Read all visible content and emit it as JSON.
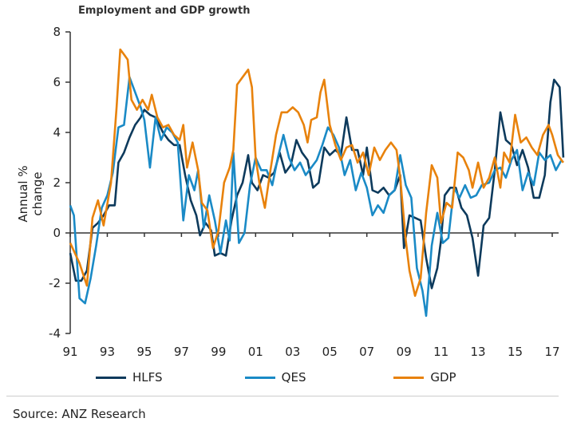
{
  "chart_data": {
    "type": "line",
    "title": "Employment and GDP growth",
    "ylabel": "Annual % change",
    "xlabel": "",
    "ylim": [
      -4,
      8
    ],
    "xlim": [
      1991,
      2017.6
    ],
    "yticks": [
      "-4",
      "-2",
      "0",
      "2",
      "4",
      "6",
      "8"
    ],
    "xticks": [
      "91",
      "93",
      "95",
      "97",
      "99",
      "01",
      "03",
      "05",
      "07",
      "09",
      "11",
      "13",
      "15",
      "17"
    ],
    "legend_position": "bottom",
    "series": [
      {
        "name": "HLFS",
        "color": "#0d3a5c",
        "points": [
          [
            1991.0,
            -0.8
          ],
          [
            1991.3,
            -1.9
          ],
          [
            1991.6,
            -1.9
          ],
          [
            1991.9,
            -1.5
          ],
          [
            1992.2,
            0.2
          ],
          [
            1992.5,
            0.4
          ],
          [
            1992.8,
            0.7
          ],
          [
            1993.1,
            1.1
          ],
          [
            1993.4,
            1.1
          ],
          [
            1993.6,
            2.8
          ],
          [
            1993.9,
            3.2
          ],
          [
            1994.2,
            3.8
          ],
          [
            1994.5,
            4.3
          ],
          [
            1994.8,
            4.6
          ],
          [
            1995.0,
            4.9
          ],
          [
            1995.3,
            4.7
          ],
          [
            1995.6,
            4.6
          ],
          [
            1996.0,
            4.0
          ],
          [
            1996.3,
            3.7
          ],
          [
            1996.6,
            3.5
          ],
          [
            1996.9,
            3.5
          ],
          [
            1997.2,
            2.3
          ],
          [
            1997.5,
            1.3
          ],
          [
            1997.8,
            0.7
          ],
          [
            1998.0,
            -0.1
          ],
          [
            1998.3,
            0.4
          ],
          [
            1998.6,
            0.1
          ],
          [
            1998.8,
            -0.9
          ],
          [
            1999.1,
            -0.8
          ],
          [
            1999.4,
            -0.9
          ],
          [
            1999.7,
            0.5
          ],
          [
            2000.0,
            1.5
          ],
          [
            2000.3,
            2.0
          ],
          [
            2000.6,
            3.1
          ],
          [
            2000.8,
            2.0
          ],
          [
            2001.1,
            1.7
          ],
          [
            2001.4,
            2.3
          ],
          [
            2001.7,
            2.2
          ],
          [
            2002.0,
            2.4
          ],
          [
            2002.3,
            3.2
          ],
          [
            2002.6,
            2.4
          ],
          [
            2002.9,
            2.7
          ],
          [
            2003.2,
            3.7
          ],
          [
            2003.5,
            3.2
          ],
          [
            2003.8,
            2.9
          ],
          [
            2004.1,
            1.8
          ],
          [
            2004.4,
            2.0
          ],
          [
            2004.7,
            3.4
          ],
          [
            2005.0,
            3.1
          ],
          [
            2005.3,
            3.3
          ],
          [
            2005.6,
            3.1
          ],
          [
            2005.9,
            4.6
          ],
          [
            2006.2,
            3.3
          ],
          [
            2006.5,
            3.3
          ],
          [
            2006.8,
            2.3
          ],
          [
            2007.0,
            3.4
          ],
          [
            2007.3,
            1.7
          ],
          [
            2007.6,
            1.6
          ],
          [
            2007.9,
            1.8
          ],
          [
            2008.2,
            1.5
          ],
          [
            2008.5,
            1.7
          ],
          [
            2008.8,
            2.3
          ],
          [
            2009.0,
            -0.6
          ],
          [
            2009.3,
            0.7
          ],
          [
            2009.6,
            0.6
          ],
          [
            2009.9,
            0.5
          ],
          [
            2010.2,
            -1.0
          ],
          [
            2010.5,
            -2.2
          ],
          [
            2010.8,
            -1.4
          ],
          [
            2011.0,
            -0.3
          ],
          [
            2011.2,
            1.5
          ],
          [
            2011.5,
            1.8
          ],
          [
            2011.8,
            1.8
          ],
          [
            2012.1,
            1.0
          ],
          [
            2012.4,
            0.7
          ],
          [
            2012.7,
            -0.2
          ],
          [
            2013.0,
            -1.7
          ],
          [
            2013.3,
            0.3
          ],
          [
            2013.6,
            0.6
          ],
          [
            2013.9,
            2.5
          ],
          [
            2014.2,
            4.8
          ],
          [
            2014.5,
            3.7
          ],
          [
            2014.8,
            3.5
          ],
          [
            2015.1,
            2.7
          ],
          [
            2015.4,
            3.3
          ],
          [
            2015.7,
            2.6
          ],
          [
            2016.0,
            1.4
          ],
          [
            2016.3,
            1.4
          ],
          [
            2016.6,
            2.3
          ],
          [
            2016.9,
            5.2
          ],
          [
            2017.1,
            6.1
          ],
          [
            2017.4,
            5.8
          ],
          [
            2017.6,
            3.0
          ]
        ]
      },
      {
        "name": "QES",
        "color": "#1a8ac6",
        "points": [
          [
            1991.0,
            1.1
          ],
          [
            1991.2,
            0.7
          ],
          [
            1991.5,
            -2.6
          ],
          [
            1991.8,
            -2.8
          ],
          [
            1992.1,
            -1.8
          ],
          [
            1992.4,
            -0.5
          ],
          [
            1992.7,
            1.0
          ],
          [
            1993.0,
            1.5
          ],
          [
            1993.3,
            2.4
          ],
          [
            1993.6,
            4.2
          ],
          [
            1993.9,
            4.3
          ],
          [
            1994.2,
            6.2
          ],
          [
            1994.5,
            5.6
          ],
          [
            1994.8,
            5.0
          ],
          [
            1995.0,
            4.5
          ],
          [
            1995.3,
            2.6
          ],
          [
            1995.6,
            4.6
          ],
          [
            1995.9,
            3.7
          ],
          [
            1996.2,
            4.2
          ],
          [
            1996.5,
            4.0
          ],
          [
            1996.8,
            3.6
          ],
          [
            1997.1,
            0.5
          ],
          [
            1997.4,
            2.3
          ],
          [
            1997.7,
            1.7
          ],
          [
            1997.9,
            2.5
          ],
          [
            1998.2,
            0.2
          ],
          [
            1998.5,
            1.5
          ],
          [
            1998.8,
            0.5
          ],
          [
            1999.1,
            -0.8
          ],
          [
            1999.4,
            0.5
          ],
          [
            1999.6,
            -0.3
          ],
          [
            1999.8,
            3.2
          ],
          [
            2000.1,
            -0.4
          ],
          [
            2000.4,
            0.0
          ],
          [
            2000.7,
            1.9
          ],
          [
            2001.0,
            3.0
          ],
          [
            2001.3,
            2.5
          ],
          [
            2001.6,
            2.5
          ],
          [
            2001.9,
            1.9
          ],
          [
            2002.2,
            3.0
          ],
          [
            2002.5,
            3.9
          ],
          [
            2002.8,
            3.0
          ],
          [
            2003.1,
            2.5
          ],
          [
            2003.4,
            2.8
          ],
          [
            2003.7,
            2.3
          ],
          [
            2004.0,
            2.6
          ],
          [
            2004.3,
            2.9
          ],
          [
            2004.6,
            3.5
          ],
          [
            2004.9,
            4.2
          ],
          [
            2005.2,
            3.9
          ],
          [
            2005.5,
            3.4
          ],
          [
            2005.8,
            2.3
          ],
          [
            2006.1,
            2.9
          ],
          [
            2006.4,
            1.7
          ],
          [
            2006.7,
            2.4
          ],
          [
            2007.0,
            1.8
          ],
          [
            2007.3,
            0.7
          ],
          [
            2007.6,
            1.1
          ],
          [
            2007.9,
            0.8
          ],
          [
            2008.2,
            1.5
          ],
          [
            2008.5,
            1.7
          ],
          [
            2008.8,
            3.1
          ],
          [
            2009.1,
            1.9
          ],
          [
            2009.4,
            1.4
          ],
          [
            2009.7,
            -1.4
          ],
          [
            2010.0,
            -2.3
          ],
          [
            2010.2,
            -3.3
          ],
          [
            2010.5,
            -0.5
          ],
          [
            2010.8,
            0.8
          ],
          [
            2011.1,
            -0.4
          ],
          [
            2011.4,
            -0.2
          ],
          [
            2011.7,
            1.8
          ],
          [
            2012.0,
            1.4
          ],
          [
            2012.3,
            1.9
          ],
          [
            2012.6,
            1.4
          ],
          [
            2012.9,
            1.5
          ],
          [
            2013.2,
            1.9
          ],
          [
            2013.6,
            2.0
          ],
          [
            2013.9,
            2.5
          ],
          [
            2014.2,
            2.6
          ],
          [
            2014.5,
            2.2
          ],
          [
            2014.8,
            2.9
          ],
          [
            2015.1,
            3.3
          ],
          [
            2015.4,
            1.7
          ],
          [
            2015.7,
            2.4
          ],
          [
            2016.0,
            1.9
          ],
          [
            2016.3,
            3.2
          ],
          [
            2016.6,
            2.9
          ],
          [
            2016.9,
            3.1
          ],
          [
            2017.2,
            2.5
          ],
          [
            2017.5,
            2.9
          ]
        ]
      },
      {
        "name": "GDP",
        "color": "#e8820c",
        "points": [
          [
            1991.0,
            -0.4
          ],
          [
            1991.5,
            -1.2
          ],
          [
            1991.9,
            -2.1
          ],
          [
            1992.2,
            0.6
          ],
          [
            1992.5,
            1.3
          ],
          [
            1992.8,
            0.3
          ],
          [
            1993.2,
            2.0
          ],
          [
            1993.5,
            5.0
          ],
          [
            1993.7,
            7.3
          ],
          [
            1993.9,
            7.1
          ],
          [
            1994.1,
            6.9
          ],
          [
            1994.3,
            5.3
          ],
          [
            1994.6,
            4.9
          ],
          [
            1994.9,
            5.3
          ],
          [
            1995.2,
            4.9
          ],
          [
            1995.4,
            5.5
          ],
          [
            1995.7,
            4.6
          ],
          [
            1996.0,
            4.2
          ],
          [
            1996.3,
            4.3
          ],
          [
            1996.6,
            3.9
          ],
          [
            1996.9,
            3.7
          ],
          [
            1997.1,
            4.3
          ],
          [
            1997.3,
            2.6
          ],
          [
            1997.6,
            3.6
          ],
          [
            1997.9,
            2.5
          ],
          [
            1998.1,
            1.2
          ],
          [
            1998.4,
            0.9
          ],
          [
            1998.7,
            -0.6
          ],
          [
            1999.0,
            0.1
          ],
          [
            1999.3,
            2.0
          ],
          [
            1999.6,
            2.6
          ],
          [
            1999.8,
            3.3
          ],
          [
            2000.0,
            5.9
          ],
          [
            2000.3,
            6.2
          ],
          [
            2000.6,
            6.5
          ],
          [
            2000.8,
            5.8
          ],
          [
            2001.0,
            3.0
          ],
          [
            2001.2,
            2.0
          ],
          [
            2001.5,
            1.0
          ],
          [
            2001.8,
            2.5
          ],
          [
            2002.1,
            3.9
          ],
          [
            2002.4,
            4.8
          ],
          [
            2002.7,
            4.8
          ],
          [
            2003.0,
            5.0
          ],
          [
            2003.3,
            4.8
          ],
          [
            2003.6,
            4.3
          ],
          [
            2003.8,
            3.6
          ],
          [
            2004.0,
            4.5
          ],
          [
            2004.3,
            4.6
          ],
          [
            2004.5,
            5.6
          ],
          [
            2004.7,
            6.1
          ],
          [
            2005.0,
            4.3
          ],
          [
            2005.3,
            3.5
          ],
          [
            2005.6,
            2.9
          ],
          [
            2005.9,
            3.4
          ],
          [
            2006.2,
            3.5
          ],
          [
            2006.5,
            2.8
          ],
          [
            2006.8,
            3.2
          ],
          [
            2007.1,
            2.3
          ],
          [
            2007.4,
            3.4
          ],
          [
            2007.7,
            2.9
          ],
          [
            2008.0,
            3.3
          ],
          [
            2008.3,
            3.6
          ],
          [
            2008.6,
            3.3
          ],
          [
            2008.8,
            2.2
          ],
          [
            2009.1,
            -0.3
          ],
          [
            2009.3,
            -1.5
          ],
          [
            2009.6,
            -2.5
          ],
          [
            2009.9,
            -1.8
          ],
          [
            2010.2,
            0.8
          ],
          [
            2010.5,
            2.7
          ],
          [
            2010.8,
            2.2
          ],
          [
            2011.0,
            0.4
          ],
          [
            2011.3,
            1.2
          ],
          [
            2011.6,
            1.0
          ],
          [
            2011.9,
            3.2
          ],
          [
            2012.2,
            3.0
          ],
          [
            2012.5,
            2.5
          ],
          [
            2012.7,
            1.8
          ],
          [
            2013.0,
            2.8
          ],
          [
            2013.3,
            1.8
          ],
          [
            2013.6,
            2.2
          ],
          [
            2013.9,
            3.0
          ],
          [
            2014.2,
            1.8
          ],
          [
            2014.4,
            3.2
          ],
          [
            2014.7,
            2.8
          ],
          [
            2015.0,
            4.7
          ],
          [
            2015.3,
            3.6
          ],
          [
            2015.6,
            3.8
          ],
          [
            2015.9,
            3.4
          ],
          [
            2016.2,
            3.1
          ],
          [
            2016.5,
            3.9
          ],
          [
            2016.8,
            4.3
          ],
          [
            2017.0,
            3.9
          ],
          [
            2017.3,
            3.1
          ],
          [
            2017.6,
            2.8
          ]
        ]
      }
    ]
  },
  "source": "Source: ANZ Research"
}
